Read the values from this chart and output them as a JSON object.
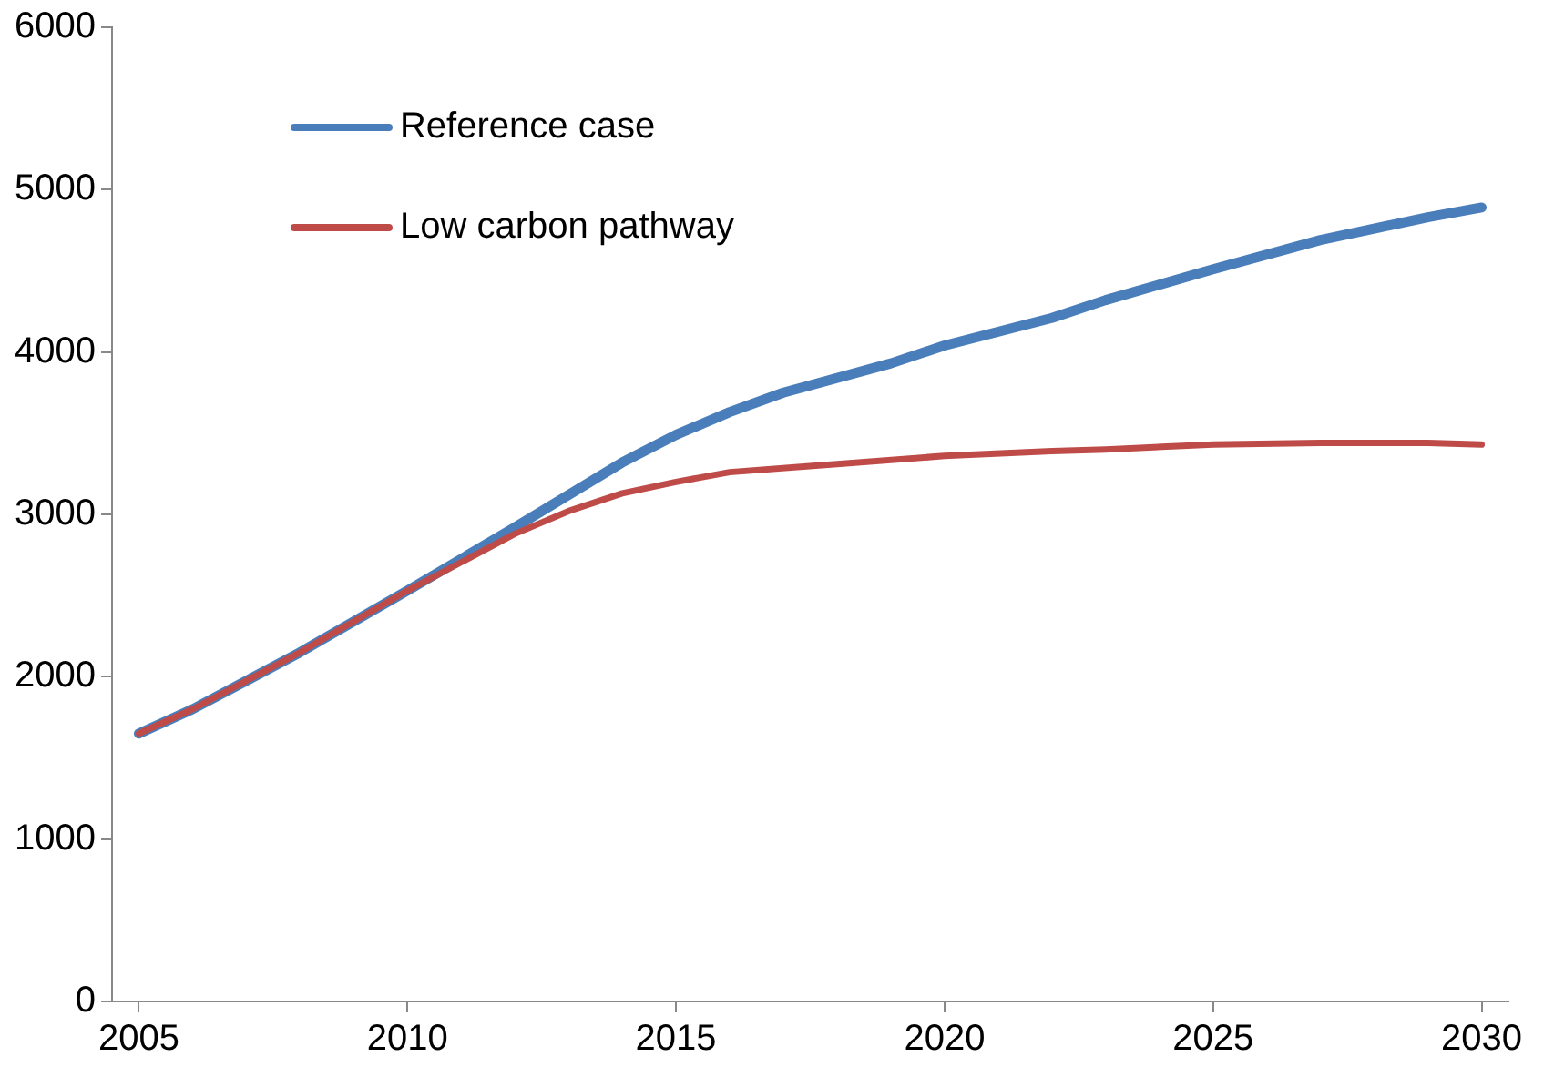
{
  "chart_data": {
    "type": "line",
    "x": [
      2005,
      2006,
      2008,
      2010,
      2012,
      2014,
      2015,
      2016,
      2017,
      2019,
      2020,
      2022,
      2023,
      2025,
      2027,
      2029,
      2030
    ],
    "series": [
      {
        "name": "Reference case",
        "color": "#4a7ebb",
        "values": [
          1650,
          1800,
          2150,
          2530,
          2920,
          3320,
          3490,
          3630,
          3750,
          3930,
          4040,
          4210,
          4320,
          4510,
          4690,
          4830,
          4890
        ]
      },
      {
        "name": "Low carbon pathway",
        "color": "#be4b48",
        "x": [
          2005,
          2006,
          2008,
          2010,
          2012,
          2013,
          2014,
          2015,
          2016,
          2018,
          2020,
          2022,
          2023,
          2025,
          2027,
          2029,
          2030
        ],
        "values": [
          1650,
          1800,
          2150,
          2530,
          2880,
          3020,
          3130,
          3200,
          3260,
          3310,
          3360,
          3390,
          3400,
          3430,
          3440,
          3440,
          3430
        ]
      }
    ],
    "xlim": [
      2004.5,
      2030.5
    ],
    "xticks": [
      2005,
      2010,
      2015,
      2020,
      2025,
      2030
    ],
    "ylim": [
      0,
      6000
    ],
    "yticks": [
      0,
      1000,
      2000,
      3000,
      4000,
      5000,
      6000
    ],
    "grid": false,
    "legend": "top left",
    "marker": "none",
    "line_style": "solid"
  }
}
